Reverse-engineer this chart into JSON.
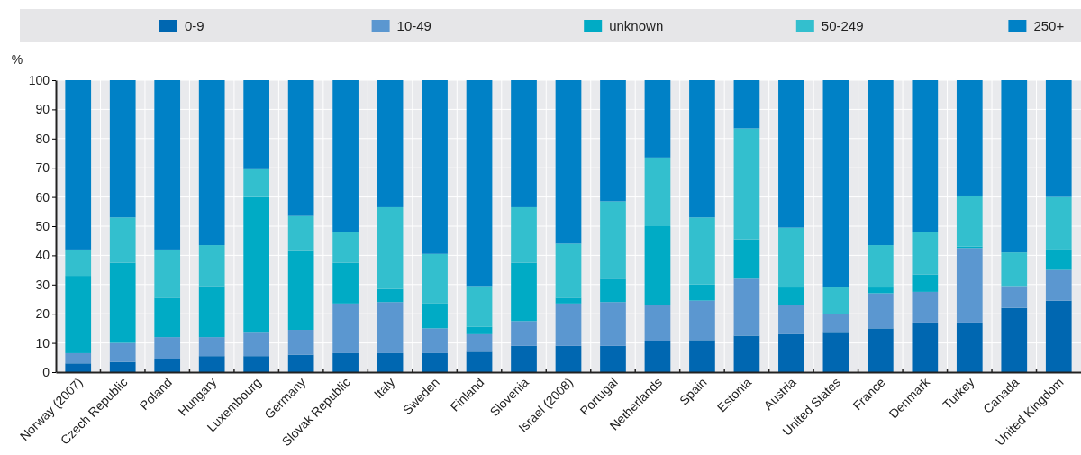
{
  "chart_data": {
    "type": "bar",
    "stacked": true,
    "ylabel": "%",
    "grid": true,
    "legend": "top",
    "categories": [
      "Norway (2007)",
      "Czech Republic",
      "Poland",
      "Hungary",
      "Luxembourg",
      "Germany",
      "Slovak Republic",
      "Italy",
      "Sweden",
      "Finland",
      "Slovenia",
      "Israel (2008)",
      "Portugal",
      "Netherlands",
      "Spain",
      "Estonia",
      "Austria",
      "United States",
      "France",
      "Denmark",
      "Turkey",
      "Canada",
      "United Kingdom"
    ],
    "ylim": [
      0,
      100
    ],
    "yticks": [
      0,
      10,
      20,
      30,
      40,
      50,
      60,
      70,
      80,
      90,
      100
    ],
    "series": [
      {
        "name": "0-9",
        "color": "#0067b1",
        "values": [
          3,
          3.5,
          4.5,
          5.5,
          5.5,
          6,
          6.5,
          6.5,
          6.5,
          7,
          9,
          9,
          9,
          10.5,
          11,
          12.5,
          13,
          13.5,
          15,
          17,
          17,
          22,
          24.5
        ]
      },
      {
        "name": "10-49",
        "color": "#5b97d0",
        "values": [
          3.5,
          6.5,
          7.5,
          6.5,
          8,
          8.5,
          17,
          17.5,
          8.5,
          6,
          8.5,
          14.5,
          15,
          12.5,
          13.5,
          19.5,
          10,
          6.5,
          12,
          10.5,
          25.5,
          7.5,
          10.5
        ]
      },
      {
        "name": "unknown",
        "color": "#00abc5",
        "values": [
          26.5,
          27.5,
          13.5,
          17.5,
          46.5,
          27,
          14,
          4.5,
          8.5,
          2.5,
          20,
          2,
          8,
          27,
          5.5,
          13.5,
          6,
          0,
          2,
          6,
          0.5,
          0,
          7
        ]
      },
      {
        "name": "50-249",
        "color": "#33bfce",
        "values": [
          9,
          15.5,
          16.5,
          14,
          9.5,
          12,
          10.5,
          28,
          17,
          14,
          19,
          18.5,
          26.5,
          23.5,
          23,
          38,
          20.5,
          9,
          14.5,
          14.5,
          17.5,
          11.5,
          18
        ]
      },
      {
        "name": "250+",
        "color": "#0081c6",
        "values": [
          58,
          47,
          58,
          56.5,
          30.5,
          46.5,
          52,
          43.5,
          59.5,
          70.5,
          43.5,
          56,
          41.5,
          26.5,
          47,
          16.5,
          50.5,
          71,
          56.5,
          52,
          39.5,
          59,
          40
        ]
      }
    ]
  }
}
